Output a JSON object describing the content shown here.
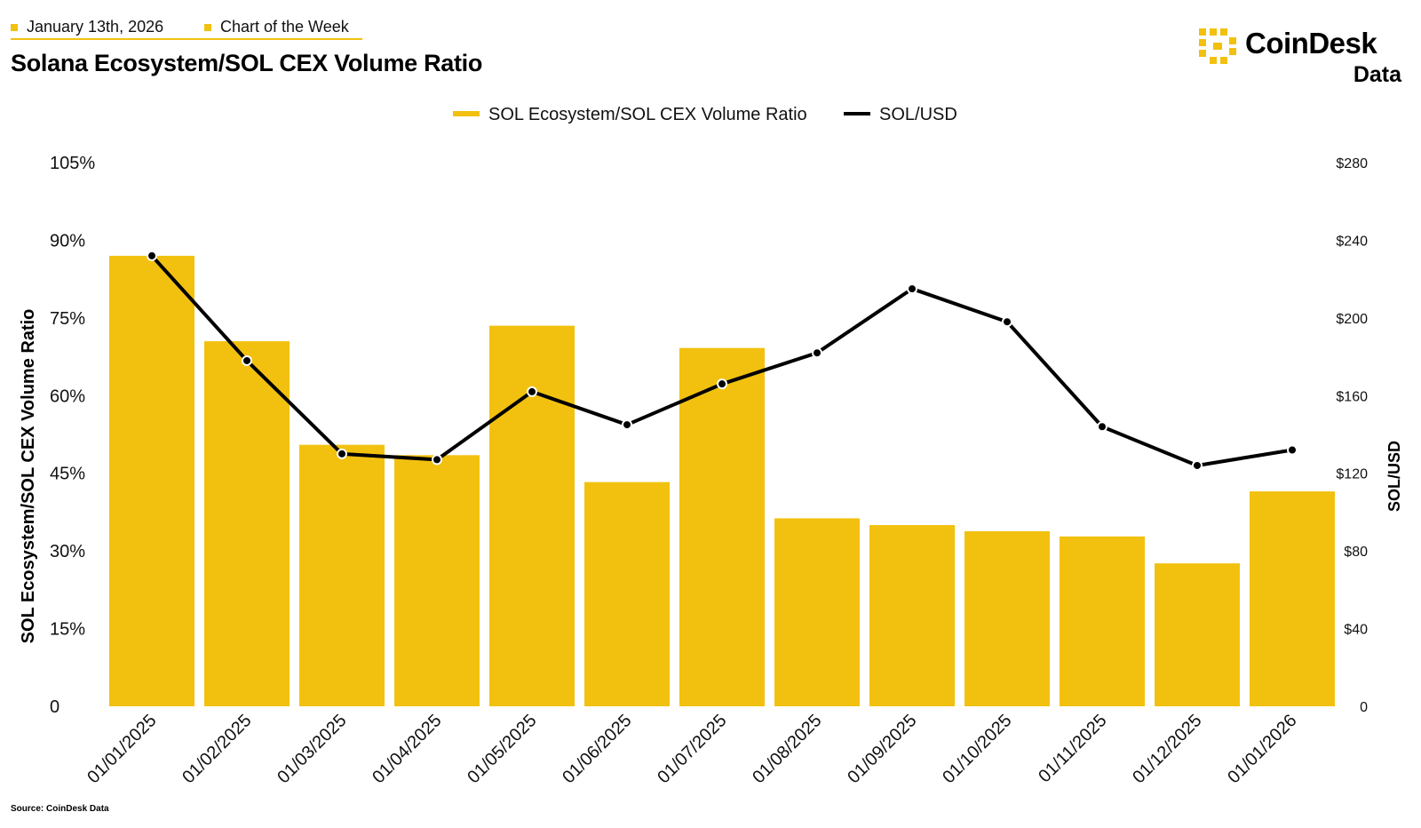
{
  "header": {
    "date": "January 13th, 2026",
    "tag": "Chart of the Week",
    "title": "Solana Ecosystem/SOL CEX Volume Ratio"
  },
  "logo": {
    "name": "CoinDesk",
    "sub": "Data"
  },
  "source": "Source: CoinDesk Data",
  "colors": {
    "accent": "#f2c10f",
    "line": "#000000",
    "text": "#111111"
  },
  "chart_data": {
    "type": "bar",
    "title": "Solana Ecosystem/SOL CEX Volume Ratio",
    "categories": [
      "01/01/2025",
      "01/02/2025",
      "01/03/2025",
      "01/04/2025",
      "01/05/2025",
      "01/06/2025",
      "01/07/2025",
      "01/08/2025",
      "01/09/2025",
      "01/10/2025",
      "01/11/2025",
      "01/12/2025",
      "01/01/2026"
    ],
    "series": [
      {
        "name": "SOL Ecosystem/SOL CEX Volume Ratio",
        "type": "bar",
        "axis": "left",
        "color": "#f2c10f",
        "values": [
          87,
          70.5,
          50.5,
          48.5,
          73.5,
          43.3,
          69.2,
          36.3,
          35,
          33.8,
          32.8,
          27.6,
          41.5
        ]
      },
      {
        "name": "SOL/USD",
        "type": "line",
        "axis": "right",
        "color": "#000000",
        "values": [
          232,
          178,
          130,
          127,
          162,
          145,
          166,
          182,
          215,
          198,
          144,
          124,
          132
        ]
      }
    ],
    "ylabel": "SOL Ecosystem/SOL CEX Volume Ratio",
    "ylabel_right": "SOL/USD",
    "ylim": [
      0,
      105
    ],
    "ylim_right": [
      0,
      280
    ],
    "yticks": [
      "0",
      "15%",
      "30%",
      "45%",
      "60%",
      "75%",
      "90%",
      "105%"
    ],
    "yticks_right": [
      "0",
      "$40",
      "$80",
      "$120",
      "$160",
      "$200",
      "$240",
      "$280"
    ],
    "legend": "top-center"
  }
}
